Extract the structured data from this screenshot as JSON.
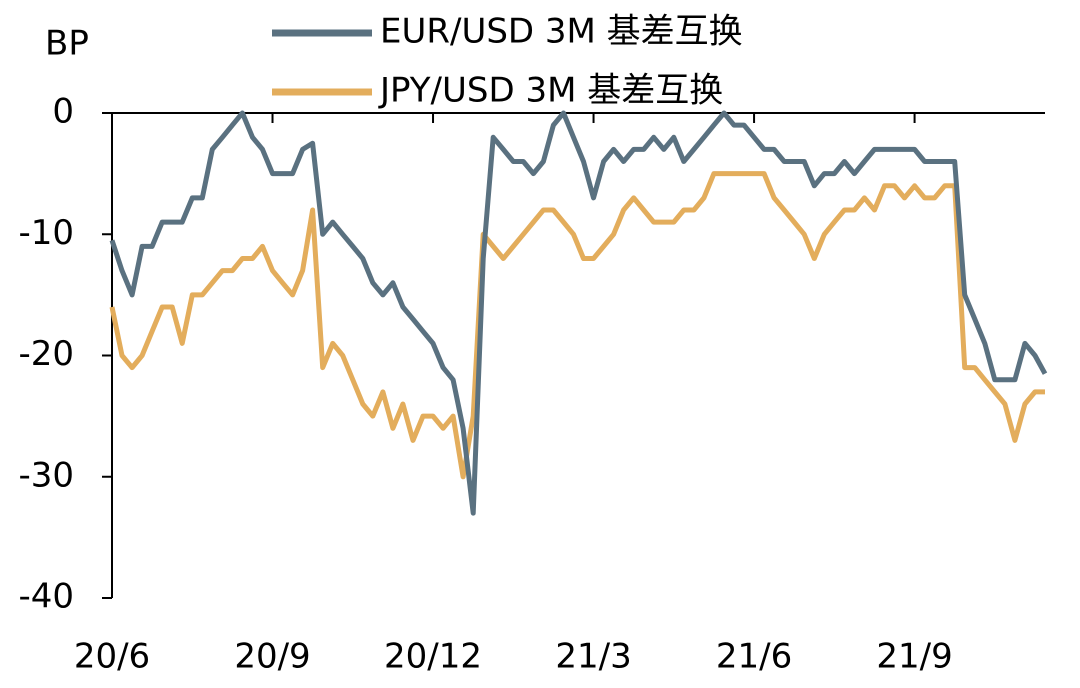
{
  "chart_data": {
    "type": "line",
    "y_label": "BP",
    "categories": [
      "20/6",
      null,
      null,
      null,
      null,
      null,
      null,
      null,
      null,
      null,
      null,
      null,
      null,
      null,
      null,
      null,
      "20/9",
      null,
      null,
      null,
      null,
      null,
      null,
      null,
      null,
      null,
      null,
      null,
      null,
      null,
      null,
      null,
      "20/12",
      null,
      null,
      null,
      null,
      null,
      null,
      null,
      null,
      null,
      null,
      null,
      null,
      null,
      null,
      null,
      "21/3",
      null,
      null,
      null,
      null,
      null,
      null,
      null,
      null,
      null,
      null,
      null,
      null,
      null,
      null,
      null,
      "21/6",
      null,
      null,
      null,
      null,
      null,
      null,
      null,
      null,
      null,
      null,
      null,
      null,
      null,
      null,
      null,
      "21/9",
      null,
      null,
      null,
      null,
      null,
      null,
      null,
      null,
      null,
      null,
      null,
      null,
      null
    ],
    "series": [
      {
        "name": "EUR/USD 3M 基差互换",
        "color": "#5a7180",
        "values": [
          -10.5,
          -13,
          -15,
          -11,
          -11,
          -9,
          -9,
          -9,
          -7,
          -7,
          -3,
          -2,
          -1,
          0,
          -2,
          -3,
          -5,
          -5,
          -5,
          -3,
          -2.5,
          -10,
          -9,
          -10,
          -11,
          -12,
          -14,
          -15,
          -14,
          -16,
          -17,
          -18,
          -19,
          -21,
          -22,
          -26,
          -33,
          -12,
          -2,
          -3,
          -4,
          -4,
          -5,
          -4,
          -1,
          0,
          -2,
          -4,
          -7,
          -4,
          -3,
          -4,
          -3,
          -3,
          -2,
          -3,
          -2,
          -4,
          -3,
          -2,
          -1,
          0,
          -1,
          -1,
          -2,
          -3,
          -3,
          -4,
          -4,
          -4,
          -6,
          -5,
          -5,
          -4,
          -5,
          -4,
          -3,
          -3,
          -3,
          -3,
          -3,
          -4,
          -4,
          -4,
          -4,
          -15,
          -17,
          -19,
          -22,
          -22,
          -22,
          -19,
          -20,
          -21.5
        ]
      },
      {
        "name": "JPY/USD 3M 基差互换",
        "color": "#e3ad5c",
        "values": [
          -16,
          -20,
          -21,
          -20,
          -18,
          -16,
          -16,
          -19,
          -15,
          -15,
          -14,
          -13,
          -13,
          -12,
          -12,
          -11,
          -13,
          -14,
          -15,
          -13,
          -8,
          -21,
          -19,
          -20,
          -22,
          -24,
          -25,
          -23,
          -26,
          -24,
          -27,
          -25,
          -25,
          -26,
          -25,
          -30,
          -25,
          -10,
          -11,
          -12,
          -11,
          -10,
          -9,
          -8,
          -8,
          -9,
          -10,
          -12,
          -12,
          -11,
          -10,
          -8,
          -7,
          -8,
          -9,
          -9,
          -9,
          -8,
          -8,
          -7,
          -5,
          -5,
          -5,
          -5,
          -5,
          -5,
          -7,
          -8,
          -9,
          -10,
          -12,
          -10,
          -9,
          -8,
          -8,
          -7,
          -8,
          -6,
          -6,
          -7,
          -6,
          -7,
          -7,
          -6,
          -6,
          -21,
          -21,
          -22,
          -23,
          -24,
          -27,
          -24,
          -23,
          -23
        ]
      }
    ],
    "ylim": [
      -40,
      0
    ],
    "yticks": [
      -40,
      -30,
      -20,
      -10,
      0
    ]
  }
}
